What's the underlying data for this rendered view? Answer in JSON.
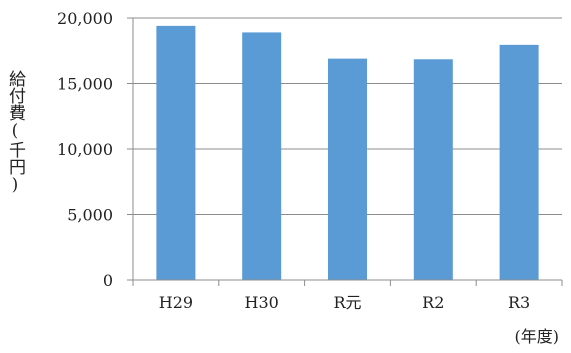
{
  "chart_data": {
    "type": "bar",
    "categories": [
      "H29",
      "H30",
      "R元",
      "R2",
      "R3"
    ],
    "values": [
      19400,
      18900,
      16900,
      16850,
      17950
    ],
    "ylabel": "給付費(千円)",
    "xlabel": "(年度)",
    "ylim": [
      0,
      20000
    ],
    "yticks": [
      "0",
      "5,000",
      "10,000",
      "15,000",
      "20,000"
    ],
    "ytick_values": [
      0,
      5000,
      10000,
      15000,
      20000
    ],
    "grid": true,
    "bar_color": "#5b9bd5"
  }
}
